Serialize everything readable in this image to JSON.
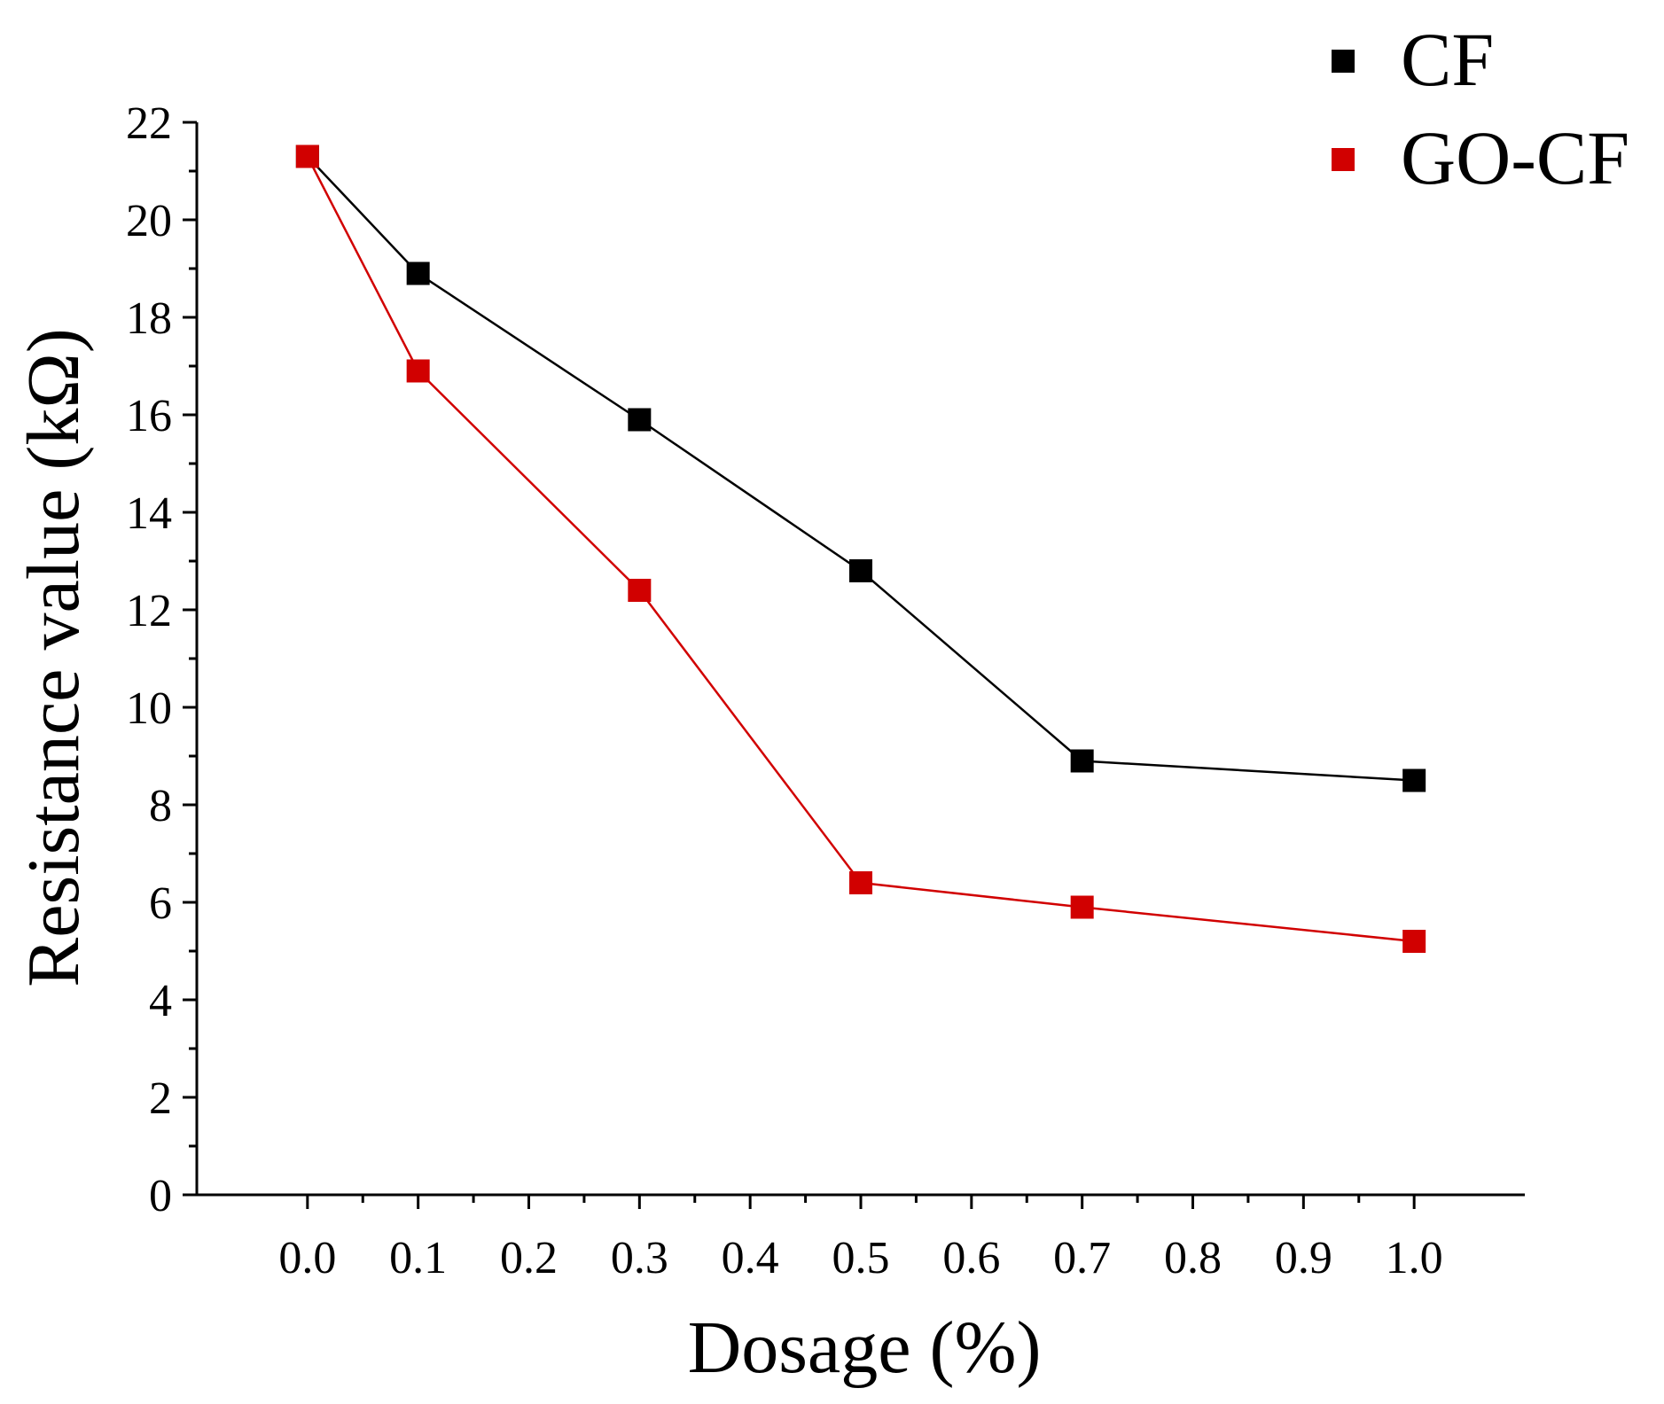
{
  "chart_data": {
    "type": "line",
    "title": "",
    "xlabel": "Dosage (%)",
    "ylabel": "Resistance value (kΩ)",
    "xlim": [
      -0.1,
      1.1
    ],
    "ylim": [
      0,
      22
    ],
    "xticks": [
      0.0,
      0.1,
      0.2,
      0.3,
      0.4,
      0.5,
      0.6,
      0.7,
      0.8,
      0.9,
      1.0
    ],
    "xtick_labels": [
      "0.0",
      "0.1",
      "0.2",
      "0.3",
      "0.4",
      "0.5",
      "0.6",
      "0.7",
      "0.8",
      "0.9",
      "1.0"
    ],
    "yticks": [
      0,
      2,
      4,
      6,
      8,
      10,
      12,
      14,
      16,
      18,
      20,
      22
    ],
    "ytick_labels": [
      "0",
      "2",
      "4",
      "6",
      "8",
      "10",
      "12",
      "14",
      "16",
      "18",
      "20",
      "22"
    ],
    "legend_position": "top-right",
    "grid": false,
    "series": [
      {
        "name": "CF",
        "color": "#000000",
        "marker": "square",
        "x": [
          0.0,
          0.1,
          0.3,
          0.5,
          0.7,
          1.0
        ],
        "values": [
          21.3,
          18.9,
          15.9,
          12.8,
          8.9,
          8.5
        ]
      },
      {
        "name": "GO-CF",
        "color": "#d10000",
        "marker": "square",
        "x": [
          0.0,
          0.1,
          0.3,
          0.5,
          0.7,
          1.0
        ],
        "values": [
          21.3,
          16.9,
          12.4,
          6.4,
          5.9,
          5.2
        ]
      }
    ]
  }
}
